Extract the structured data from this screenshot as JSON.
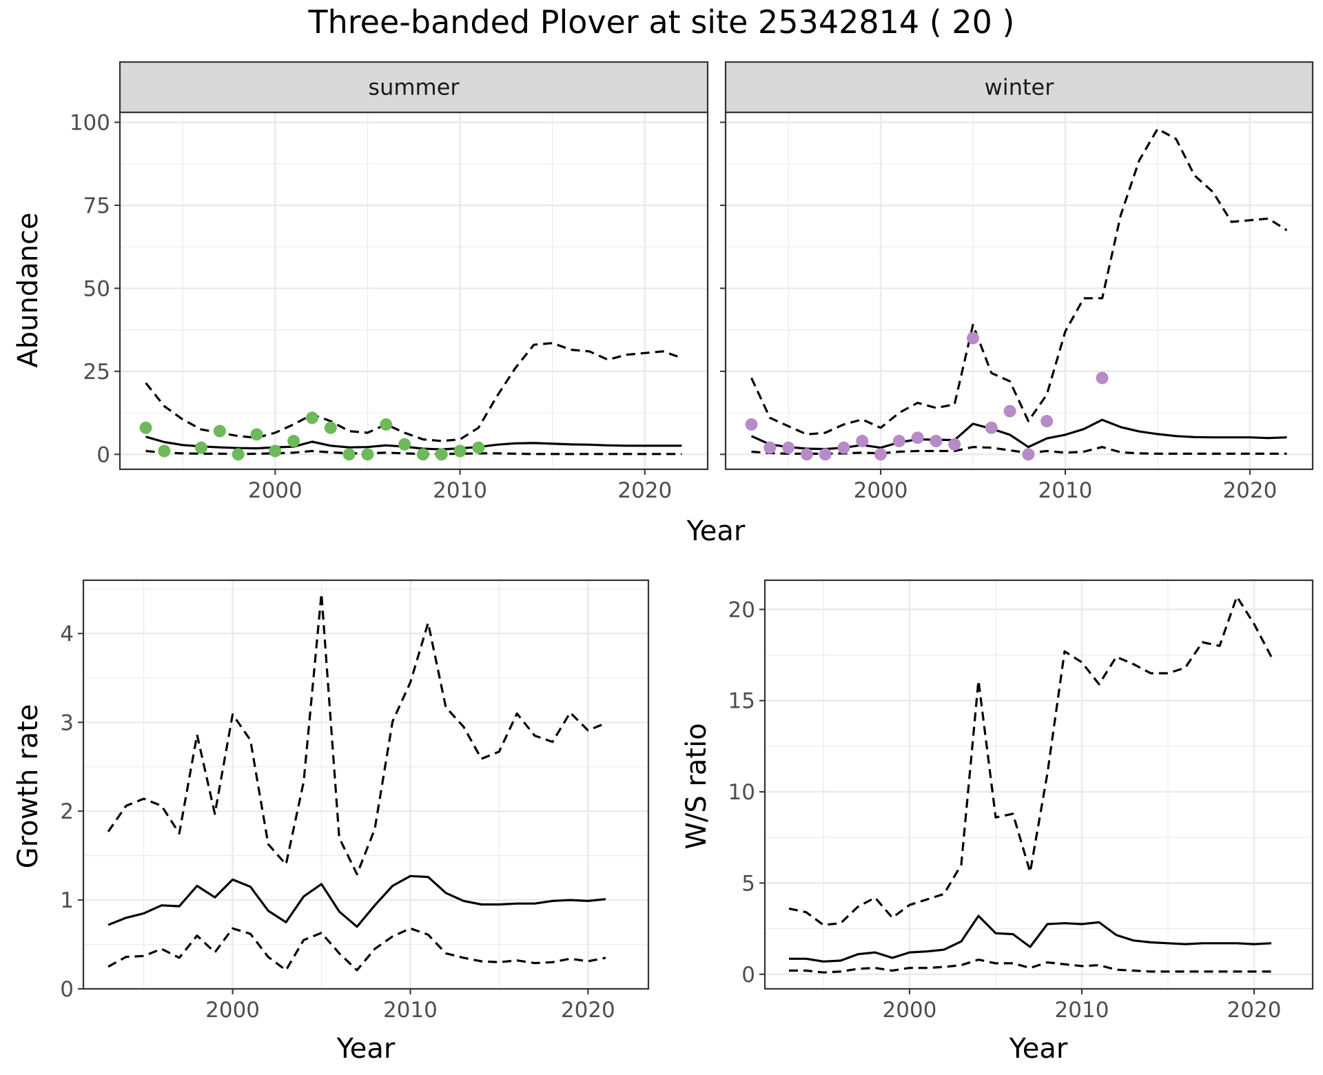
{
  "title": "Three-banded Plover at site 25342814 ( 20 )",
  "colors": {
    "summer_points": "#6CBA5A",
    "winter_points": "#B68BC7",
    "line": "#000000",
    "strip_fill": "#D9D9D9",
    "grid_major": "#EBEBEB",
    "panel_border": "#333333"
  },
  "chart_data": [
    {
      "name": "abundance-summer",
      "type": "line",
      "strip": "summer",
      "xlabel": "Year",
      "ylabel": "Abundance",
      "xlim": [
        1991.6,
        2023.4
      ],
      "ylim": [
        -4.5,
        103
      ],
      "xticks": [
        2000,
        2010,
        2020
      ],
      "yticks": [
        0,
        25,
        50,
        75,
        100
      ],
      "series": [
        {
          "name": "estimate",
          "style": "solid",
          "x": [
            1993,
            1994,
            1995,
            1996,
            1997,
            1998,
            1999,
            2000,
            2001,
            2002,
            2003,
            2004,
            2005,
            2006,
            2007,
            2008,
            2009,
            2010,
            2011,
            2012,
            2013,
            2014,
            2015,
            2016,
            2017,
            2018,
            2019,
            2020,
            2021,
            2022
          ],
          "y": [
            5.3,
            3.7,
            2.8,
            2.4,
            2.1,
            1.9,
            1.8,
            2.1,
            2.3,
            3.8,
            2.6,
            2.1,
            2.2,
            2.7,
            2.3,
            1.7,
            1.5,
            1.8,
            2.2,
            2.9,
            3.3,
            3.4,
            3.2,
            3.0,
            2.9,
            2.7,
            2.6,
            2.6,
            2.6,
            2.6
          ]
        },
        {
          "name": "upper",
          "style": "dashed",
          "x": [
            1993,
            1994,
            1995,
            1996,
            1997,
            1998,
            1999,
            2000,
            2001,
            2002,
            2003,
            2004,
            2005,
            2006,
            2007,
            2008,
            2009,
            2010,
            2011,
            2012,
            2013,
            2014,
            2015,
            2016,
            2017,
            2018,
            2019,
            2020,
            2021,
            2022
          ],
          "y": [
            21.5,
            14.5,
            10.5,
            7.5,
            6.5,
            5.5,
            5.0,
            6.5,
            9.0,
            12.0,
            10.0,
            7.0,
            6.5,
            9.0,
            6.5,
            4.5,
            4.0,
            4.5,
            8.0,
            17.5,
            26.0,
            33.0,
            33.5,
            31.5,
            31.0,
            28.5,
            30.0,
            30.5,
            31.0,
            29.0
          ]
        },
        {
          "name": "lower",
          "style": "dashed",
          "x": [
            1993,
            1994,
            1995,
            1996,
            1997,
            1998,
            1999,
            2000,
            2001,
            2002,
            2003,
            2004,
            2005,
            2006,
            2007,
            2008,
            2009,
            2010,
            2011,
            2012,
            2013,
            2014,
            2015,
            2016,
            2017,
            2018,
            2019,
            2020,
            2021,
            2022
          ],
          "y": [
            1.0,
            0.5,
            0.3,
            0.2,
            0.2,
            0.1,
            0.2,
            0.3,
            0.5,
            1.0,
            0.6,
            0.3,
            0.3,
            0.5,
            0.3,
            0.1,
            0.1,
            0.2,
            0.3,
            0.3,
            0.2,
            0.1,
            0.1,
            0.1,
            0.1,
            0.1,
            0.1,
            0.1,
            0.1,
            0.1
          ]
        }
      ],
      "points": {
        "x": [
          1993,
          1994,
          1996,
          1997,
          1998,
          1999,
          2000,
          2001,
          2002,
          2003,
          2004,
          2005,
          2006,
          2007,
          2008,
          2009,
          2010,
          2011
        ],
        "y": [
          8,
          1,
          2,
          7,
          0,
          6,
          1,
          4,
          11,
          8,
          0,
          0,
          9,
          3,
          0,
          0,
          1,
          2
        ]
      }
    },
    {
      "name": "abundance-winter",
      "type": "line",
      "strip": "winter",
      "xlabel": "Year",
      "ylabel": "Abundance",
      "xlim": [
        1991.6,
        2023.4
      ],
      "ylim": [
        -4.5,
        103
      ],
      "xticks": [
        2000,
        2010,
        2020
      ],
      "yticks": [
        0,
        25,
        50,
        75,
        100
      ],
      "series": [
        {
          "name": "estimate",
          "style": "solid",
          "x": [
            1993,
            1994,
            1995,
            1996,
            1997,
            1998,
            1999,
            2000,
            2001,
            2002,
            2003,
            2004,
            2005,
            2006,
            2007,
            2008,
            2009,
            2010,
            2011,
            2012,
            2013,
            2014,
            2015,
            2016,
            2017,
            2018,
            2019,
            2020,
            2021,
            2022
          ],
          "y": [
            5.5,
            3.0,
            2.2,
            1.7,
            1.6,
            2.0,
            2.8,
            2.0,
            3.6,
            4.5,
            4.4,
            4.3,
            9.2,
            7.7,
            5.9,
            2.2,
            4.8,
            5.9,
            7.6,
            10.4,
            8.2,
            6.9,
            6.1,
            5.5,
            5.2,
            5.1,
            5.1,
            5.1,
            4.9,
            5.1
          ]
        },
        {
          "name": "upper",
          "style": "dashed",
          "x": [
            1993,
            1994,
            1995,
            1996,
            1997,
            1998,
            1999,
            2000,
            2001,
            2002,
            2003,
            2004,
            2005,
            2006,
            2007,
            2008,
            2009,
            2010,
            2011,
            2012,
            2013,
            2014,
            2015,
            2016,
            2017,
            2018,
            2019,
            2020,
            2021,
            2022
          ],
          "y": [
            23,
            11,
            8.5,
            6,
            6.5,
            9,
            10.5,
            8,
            12.5,
            15.5,
            14,
            15,
            39,
            24.5,
            22,
            10,
            18,
            37,
            47,
            47,
            72,
            88.5,
            98,
            95,
            84,
            79,
            70,
            70.5,
            71,
            67.5
          ]
        },
        {
          "name": "lower",
          "style": "dashed",
          "x": [
            1993,
            1994,
            1995,
            1996,
            1997,
            1998,
            1999,
            2000,
            2001,
            2002,
            2003,
            2004,
            2005,
            2006,
            2007,
            2008,
            2009,
            2010,
            2011,
            2012,
            2013,
            2014,
            2015,
            2016,
            2017,
            2018,
            2019,
            2020,
            2021,
            2022
          ],
          "y": [
            0.8,
            0.4,
            0.2,
            0.2,
            0.2,
            0.3,
            0.5,
            0.3,
            0.8,
            1.0,
            1.0,
            1.0,
            2.2,
            2.0,
            1.2,
            0.4,
            1.0,
            0.5,
            0.8,
            2.2,
            0.6,
            0.3,
            0.2,
            0.2,
            0.2,
            0.2,
            0.2,
            0.2,
            0.2,
            0.2
          ]
        }
      ],
      "points": {
        "x": [
          1993,
          1994,
          1995,
          1996,
          1997,
          1998,
          1999,
          2000,
          2001,
          2002,
          2003,
          2004,
          2005,
          2006,
          2007,
          2008,
          2009,
          2012
        ],
        "y": [
          9,
          2,
          2,
          0,
          0,
          2,
          4,
          0,
          4,
          5,
          4,
          3,
          35,
          8,
          13,
          0,
          10,
          23
        ]
      }
    },
    {
      "name": "growth-rate",
      "type": "line",
      "xlabel": "Year",
      "ylabel": "Growth rate",
      "xlim": [
        1991.6,
        2023.4
      ],
      "ylim": [
        0,
        4.6
      ],
      "xticks": [
        2000,
        2010,
        2020
      ],
      "yticks": [
        0,
        1,
        2,
        3,
        4
      ],
      "series": [
        {
          "name": "estimate",
          "style": "solid",
          "x": [
            1993,
            1994,
            1995,
            1996,
            1997,
            1998,
            1999,
            2000,
            2001,
            2002,
            2003,
            2004,
            2005,
            2006,
            2007,
            2008,
            2009,
            2010,
            2011,
            2012,
            2013,
            2014,
            2015,
            2016,
            2017,
            2018,
            2019,
            2020,
            2021
          ],
          "y": [
            0.72,
            0.8,
            0.85,
            0.94,
            0.93,
            1.16,
            1.03,
            1.23,
            1.15,
            0.88,
            0.75,
            1.04,
            1.18,
            0.87,
            0.7,
            0.94,
            1.16,
            1.27,
            1.26,
            1.08,
            0.99,
            0.95,
            0.95,
            0.96,
            0.96,
            0.99,
            1.0,
            0.99,
            1.01
          ]
        },
        {
          "name": "upper",
          "style": "dashed",
          "x": [
            1993,
            1994,
            1995,
            1996,
            1997,
            1998,
            1999,
            2000,
            2001,
            2002,
            2003,
            2004,
            2005,
            2006,
            2007,
            2008,
            2009,
            2010,
            2011,
            2012,
            2013,
            2014,
            2015,
            2016,
            2017,
            2018,
            2019,
            2020,
            2021
          ],
          "y": [
            1.77,
            2.06,
            2.14,
            2.06,
            1.75,
            2.86,
            1.97,
            3.09,
            2.8,
            1.63,
            1.4,
            2.33,
            4.45,
            1.7,
            1.29,
            1.8,
            3.01,
            3.45,
            4.12,
            3.17,
            2.95,
            2.59,
            2.67,
            3.1,
            2.85,
            2.78,
            3.11,
            2.91,
            2.99
          ]
        },
        {
          "name": "lower",
          "style": "dashed",
          "x": [
            1993,
            1994,
            1995,
            1996,
            1997,
            1998,
            1999,
            2000,
            2001,
            2002,
            2003,
            2004,
            2005,
            2006,
            2007,
            2008,
            2009,
            2010,
            2011,
            2012,
            2013,
            2014,
            2015,
            2016,
            2017,
            2018,
            2019,
            2020,
            2021
          ],
          "y": [
            0.25,
            0.36,
            0.37,
            0.45,
            0.35,
            0.6,
            0.41,
            0.68,
            0.62,
            0.36,
            0.21,
            0.55,
            0.63,
            0.4,
            0.21,
            0.45,
            0.59,
            0.68,
            0.61,
            0.4,
            0.35,
            0.31,
            0.3,
            0.32,
            0.29,
            0.3,
            0.34,
            0.31,
            0.35
          ]
        }
      ]
    },
    {
      "name": "ws-ratio",
      "type": "line",
      "xlabel": "Year",
      "ylabel": "W/S ratio",
      "xlim": [
        1991.6,
        2023.4
      ],
      "ylim": [
        -0.8,
        21.6
      ],
      "xticks": [
        2000,
        2010,
        2020
      ],
      "yticks": [
        0,
        5,
        10,
        15,
        20
      ],
      "series": [
        {
          "name": "estimate",
          "style": "solid",
          "x": [
            1993,
            1994,
            1995,
            1996,
            1997,
            1998,
            1999,
            2000,
            2001,
            2002,
            2003,
            2004,
            2005,
            2006,
            2007,
            2008,
            2009,
            2010,
            2011,
            2012,
            2013,
            2014,
            2015,
            2016,
            2017,
            2018,
            2019,
            2020,
            2021
          ],
          "y": [
            0.85,
            0.85,
            0.7,
            0.75,
            1.1,
            1.2,
            0.9,
            1.2,
            1.25,
            1.35,
            1.8,
            3.2,
            2.25,
            2.2,
            1.5,
            2.75,
            2.8,
            2.75,
            2.85,
            2.15,
            1.85,
            1.75,
            1.7,
            1.65,
            1.7,
            1.7,
            1.7,
            1.65,
            1.7
          ]
        },
        {
          "name": "upper",
          "style": "dashed",
          "x": [
            1993,
            1994,
            1995,
            1996,
            1997,
            1998,
            1999,
            2000,
            2001,
            2002,
            2003,
            2004,
            2005,
            2006,
            2007,
            2008,
            2009,
            2010,
            2011,
            2012,
            2013,
            2014,
            2015,
            2016,
            2017,
            2018,
            2019,
            2020,
            2021
          ],
          "y": [
            3.6,
            3.4,
            2.7,
            2.8,
            3.7,
            4.2,
            3.1,
            3.8,
            4.1,
            4.4,
            6.0,
            16.1,
            8.6,
            8.8,
            5.6,
            11.0,
            17.7,
            17.1,
            15.9,
            17.4,
            17.0,
            16.5,
            16.5,
            16.8,
            18.2,
            18.0,
            20.7,
            19.2,
            17.4
          ]
        },
        {
          "name": "lower",
          "style": "dashed",
          "x": [
            1993,
            1994,
            1995,
            1996,
            1997,
            1998,
            1999,
            2000,
            2001,
            2002,
            2003,
            2004,
            2005,
            2006,
            2007,
            2008,
            2009,
            2010,
            2011,
            2012,
            2013,
            2014,
            2015,
            2016,
            2017,
            2018,
            2019,
            2020,
            2021
          ],
          "y": [
            0.2,
            0.2,
            0.1,
            0.15,
            0.3,
            0.35,
            0.2,
            0.35,
            0.35,
            0.4,
            0.5,
            0.8,
            0.6,
            0.6,
            0.35,
            0.65,
            0.55,
            0.45,
            0.5,
            0.25,
            0.2,
            0.15,
            0.15,
            0.15,
            0.15,
            0.15,
            0.15,
            0.15,
            0.15
          ]
        }
      ]
    }
  ]
}
